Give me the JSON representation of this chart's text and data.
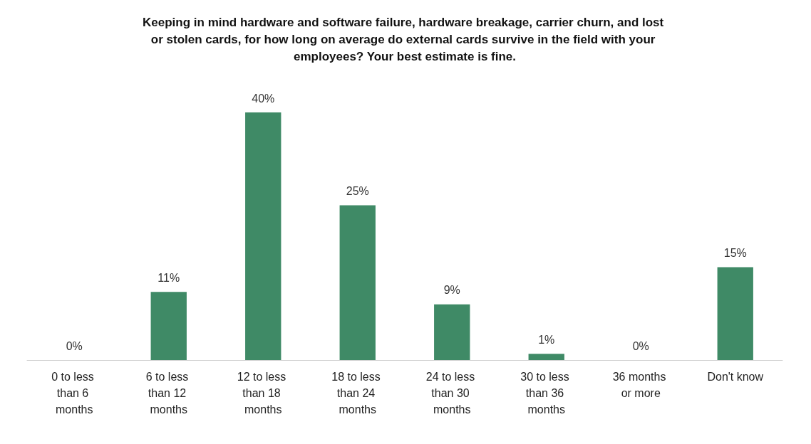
{
  "chart_data": {
    "type": "bar",
    "title": "Keeping in mind hardware and software failure, hardware breakage, carrier churn, and lost or stolen cards, for how long on average do external cards survive in the field with your employees? Your best estimate is fine.",
    "categories": [
      "0 to less than 6 months",
      "6 to less than 12 months",
      "12 to less than 18 months",
      "18 to less than 24 months",
      "24 to less than 30 months",
      "30 to less than 36 months",
      "36 months or more",
      "Don't know"
    ],
    "values": [
      0,
      11,
      40,
      25,
      9,
      1,
      0,
      15
    ],
    "value_labels": [
      "0%",
      "11%",
      "40%",
      "25%",
      "9%",
      "1%",
      "0%",
      "15%"
    ],
    "color": "#3f8a66",
    "grid": false
  }
}
